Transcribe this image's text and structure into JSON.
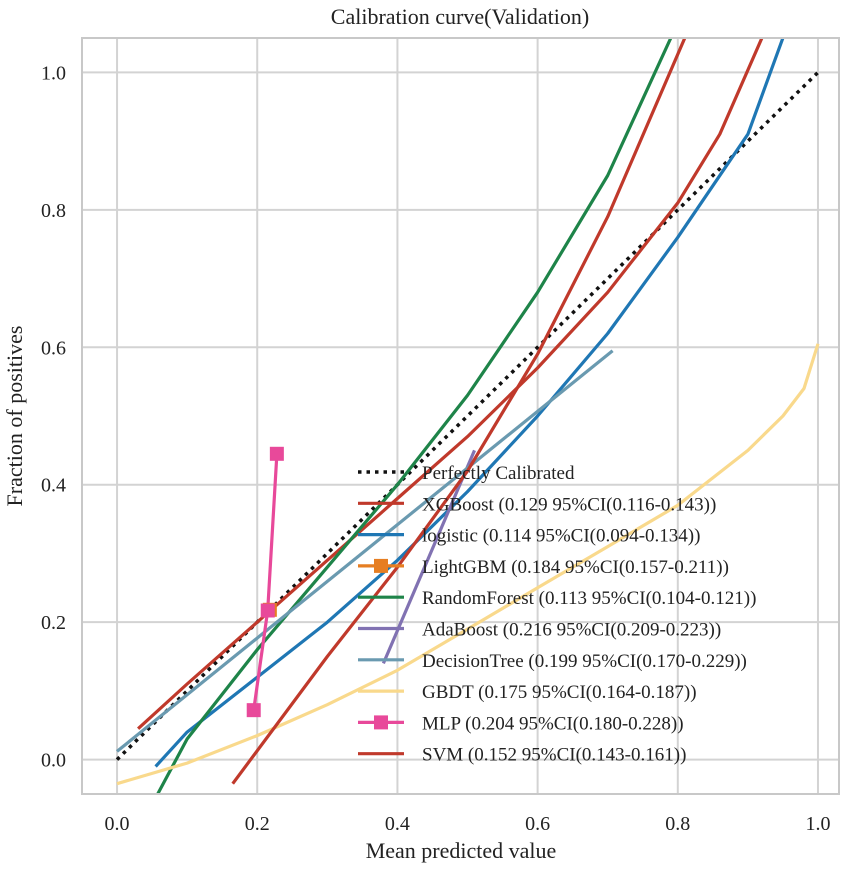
{
  "chart_data": {
    "type": "line",
    "title": "Calibration curve(Validation)",
    "xlabel": "Mean predicted value",
    "ylabel": "Fraction of positives",
    "xlim": [
      -0.05,
      1.03
    ],
    "ylim": [
      -0.05,
      1.05
    ],
    "xticks": [
      "0.0",
      "0.2",
      "0.4",
      "0.6",
      "0.8",
      "1.0"
    ],
    "yticks": [
      "0.0",
      "0.2",
      "0.4",
      "0.6",
      "0.8",
      "1.0"
    ],
    "grid": true,
    "legend_position": "lower-right",
    "series": [
      {
        "name": "Perfectly Calibrated",
        "color": "#111111",
        "style": "dotted",
        "marker": "none",
        "x": [
          0.0,
          1.0
        ],
        "y": [
          0.0,
          1.0
        ]
      },
      {
        "name": "XGBoost (0.129 95%CI(0.116-0.143))",
        "color": "#c0392b",
        "style": "solid",
        "marker": "none",
        "x": [
          0.03,
          0.1,
          0.2,
          0.3,
          0.4,
          0.5,
          0.6,
          0.7,
          0.8,
          0.86,
          0.92
        ],
        "y": [
          0.045,
          0.11,
          0.2,
          0.29,
          0.38,
          0.47,
          0.57,
          0.68,
          0.81,
          0.91,
          1.05
        ]
      },
      {
        "name": "logistic (0.114 95%CI(0.094-0.134))",
        "color": "#1f77b4",
        "style": "solid",
        "marker": "none",
        "x": [
          0.055,
          0.1,
          0.2,
          0.3,
          0.4,
          0.5,
          0.6,
          0.7,
          0.8,
          0.9,
          0.95
        ],
        "y": [
          -0.01,
          0.04,
          0.12,
          0.2,
          0.29,
          0.39,
          0.5,
          0.62,
          0.76,
          0.91,
          1.05
        ]
      },
      {
        "name": "LightGBM (0.184 95%CI(0.157-0.211))",
        "color": "#e67e22",
        "style": "none",
        "marker": "square",
        "x": [
          0.218
        ],
        "y": [
          0.218
        ]
      },
      {
        "name": "RandomForest (0.113 95%CI(0.104-0.121))",
        "color": "#1e8449",
        "style": "solid",
        "marker": "none",
        "x": [
          0.058,
          0.1,
          0.2,
          0.3,
          0.4,
          0.5,
          0.6,
          0.7,
          0.79
        ],
        "y": [
          -0.05,
          0.03,
          0.16,
          0.28,
          0.4,
          0.53,
          0.68,
          0.85,
          1.05
        ]
      },
      {
        "name": "AdaBoost (0.216 95%CI(0.209-0.223))",
        "color": "#8172b2",
        "style": "solid",
        "marker": "none",
        "x": [
          0.38,
          0.51
        ],
        "y": [
          0.14,
          0.45
        ]
      },
      {
        "name": "DecisionTree (0.199 95%CI(0.170-0.229))",
        "color": "#6a9ab0",
        "style": "solid",
        "marker": "none",
        "x": [
          0.0,
          0.707
        ],
        "y": [
          0.012,
          0.595
        ]
      },
      {
        "name": "GBDT (0.175 95%CI(0.164-0.187))",
        "color": "#f9d98c",
        "style": "solid",
        "marker": "none",
        "x": [
          0.0,
          0.1,
          0.2,
          0.3,
          0.4,
          0.5,
          0.6,
          0.7,
          0.8,
          0.9,
          0.95,
          0.98,
          1.0
        ],
        "y": [
          -0.035,
          -0.005,
          0.035,
          0.08,
          0.13,
          0.19,
          0.25,
          0.31,
          0.37,
          0.45,
          0.5,
          0.54,
          0.605
        ]
      },
      {
        "name": "MLP (0.204 95%CI(0.180-0.228))",
        "color": "#e8499a",
        "style": "solid",
        "marker": "square",
        "x": [
          0.195,
          0.215,
          0.228
        ],
        "y": [
          0.072,
          0.217,
          0.445
        ]
      },
      {
        "name": "SVM (0.152 95%CI(0.143-0.161))",
        "color": "#c0392b",
        "style": "solid",
        "marker": "none",
        "x": [
          0.165,
          0.3,
          0.4,
          0.5,
          0.6,
          0.7,
          0.81
        ],
        "y": [
          -0.035,
          0.15,
          0.28,
          0.42,
          0.59,
          0.79,
          1.05
        ]
      }
    ]
  }
}
